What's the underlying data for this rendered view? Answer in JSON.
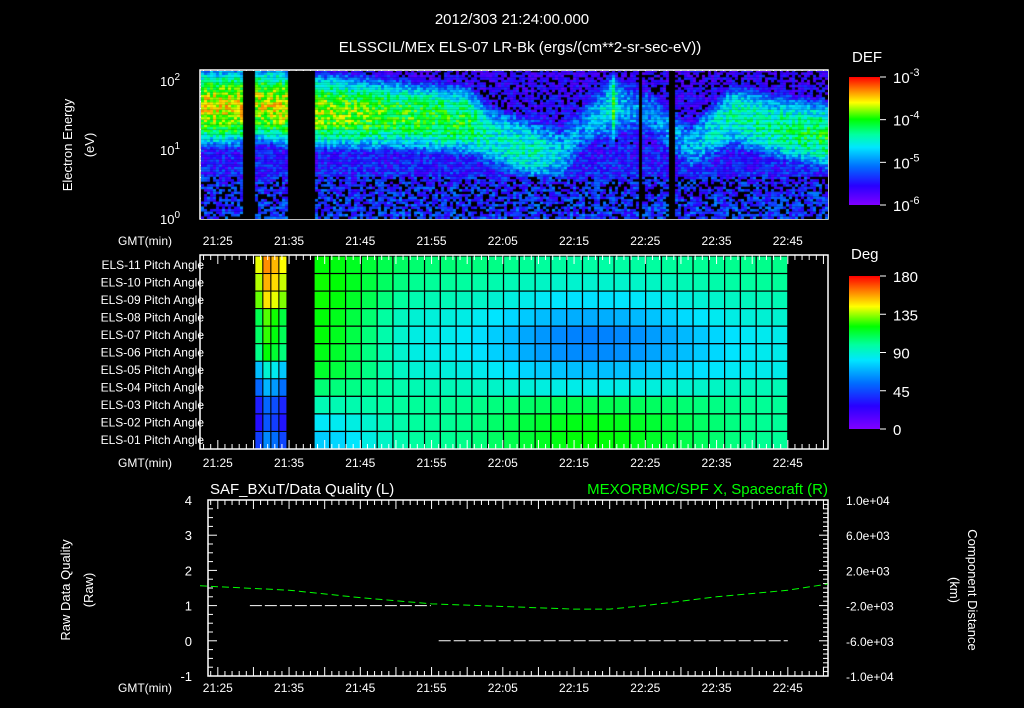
{
  "header": {
    "date_time": "2012/303 21:24:00.000",
    "title": "ELSSCIL/MEx ELS-07 LR-Bk  (ergs/(cm**2-sr-sec-eV))"
  },
  "time_axis": {
    "label": "GMT(min)",
    "ticks": [
      "21:25",
      "21:35",
      "21:45",
      "21:55",
      "22:05",
      "22:15",
      "22:25",
      "22:35",
      "22:45"
    ]
  },
  "chart_data": [
    {
      "type": "heatmap",
      "title": "ELSSCIL/MEx ELS-07 LR-Bk  (ergs/(cm**2-sr-sec-eV))",
      "ylabel": [
        "Electron Energy",
        "(eV)"
      ],
      "yscale": "log",
      "ylim": [
        1,
        150
      ],
      "yticks": [
        {
          "base": "10",
          "exp": "2",
          "value": 100
        },
        {
          "base": "10",
          "exp": "1",
          "value": 10
        },
        {
          "base": "10",
          "exp": "0",
          "value": 1
        }
      ],
      "colorbar": {
        "label": "DEF",
        "scale": "log",
        "range": [
          1e-06,
          0.001
        ],
        "ticks": [
          {
            "base": "10",
            "exp": "-3",
            "value": -3
          },
          {
            "base": "10",
            "exp": "-4",
            "value": -4
          },
          {
            "base": "10",
            "exp": "-5",
            "value": -5
          },
          {
            "base": "10",
            "exp": "-6",
            "value": -6
          }
        ]
      },
      "data_gaps_min_past_21": [
        [
          28.5,
          30.2
        ],
        [
          34.7,
          38.5
        ],
        [
          83.7,
          84.4
        ],
        [
          88.2,
          88.8
        ]
      ],
      "peak_track": {
        "columns": [
          "time_min_past_21",
          "peak_energy_eV",
          "log10_DEF"
        ],
        "rows": [
          [
            22.5,
            40,
            -3.6
          ],
          [
            28,
            40,
            -3.6
          ],
          [
            30,
            45,
            -3.7
          ],
          [
            34,
            40,
            -3.6
          ],
          [
            38.5,
            35,
            -3.75
          ],
          [
            50,
            30,
            -4.0
          ],
          [
            60,
            25,
            -4.1
          ],
          [
            63,
            15,
            -4.5
          ],
          [
            68,
            10,
            -4.4
          ],
          [
            73,
            8,
            -4.7
          ],
          [
            76,
            20,
            -5.0
          ],
          [
            79.8,
            40,
            -4.6
          ],
          [
            80.3,
            40,
            -3.9
          ],
          [
            81,
            40,
            -4.8
          ],
          [
            86,
            30,
            -5.0
          ],
          [
            91,
            10,
            -4.9
          ],
          [
            97,
            30,
            -4.4
          ],
          [
            103,
            20,
            -4.3
          ],
          [
            110.6,
            15,
            -4.1
          ]
        ]
      }
    },
    {
      "type": "heatmap",
      "colorbar": {
        "label": "Deg",
        "range": [
          0,
          180
        ],
        "ticks": [
          "180",
          "135",
          "90",
          "45",
          "0"
        ]
      },
      "profile_times_min_past_21": [
        38.5,
        55,
        77,
        105
      ],
      "early_block_min_past_21": [
        30.2,
        34.7
      ],
      "rows": [
        {
          "label": "ELS-11 Pitch Angle",
          "early": 150,
          "profile": [
            120,
            105,
            98,
            102
          ]
        },
        {
          "label": "ELS-10 Pitch Angle",
          "early": 145,
          "profile": [
            122,
            100,
            90,
            100
          ]
        },
        {
          "label": "ELS-09 Pitch Angle",
          "early": 138,
          "profile": [
            122,
            95,
            80,
            95
          ]
        },
        {
          "label": "ELS-08 Pitch Angle",
          "early": 118,
          "profile": [
            120,
            88,
            68,
            90
          ]
        },
        {
          "label": "ELS-07 Pitch Angle",
          "early": 115,
          "profile": [
            120,
            85,
            58,
            85
          ]
        },
        {
          "label": "ELS-06 Pitch Angle",
          "early": 110,
          "profile": [
            118,
            85,
            60,
            85
          ]
        },
        {
          "label": "ELS-05 Pitch Angle",
          "early": 80,
          "profile": [
            115,
            88,
            72,
            85
          ]
        },
        {
          "label": "ELS-04 Pitch Angle",
          "early": 60,
          "profile": [
            105,
            95,
            85,
            95
          ]
        },
        {
          "label": "ELS-03 Pitch Angle",
          "early": 42,
          "profile": [
            95,
            100,
            110,
            100
          ]
        },
        {
          "label": "ELS-02 Pitch Angle",
          "early": 38,
          "profile": [
            82,
            100,
            118,
            100
          ]
        },
        {
          "label": "ELS-01 Pitch Angle",
          "early": 50,
          "profile": [
            75,
            100,
            120,
            100
          ]
        }
      ]
    },
    {
      "type": "line",
      "title_left": "SAF_BXuT/Data Quality (L)",
      "title_right": "MEXORBMC/SPF X, Spacecraft (R)",
      "ylabel": [
        "Raw Data Quality",
        "(Raw)"
      ],
      "y2label": [
        "Component Distance",
        "(km)"
      ],
      "ylim": [
        -1,
        4
      ],
      "yticks": [
        "4",
        "3",
        "2",
        "1",
        "0",
        "-1"
      ],
      "y2lim": [
        -10000,
        10000
      ],
      "y2ticks": [
        "1.0e+04",
        "6.0e+03",
        "2.0e+03",
        "-2.0e+03",
        "-6.0e+03",
        "-1.0e+04"
      ],
      "series": [
        {
          "name": "Data Quality",
          "axis": "left",
          "color": "#ffffff",
          "segments": [
            [
              29.5,
              54.9,
              1
            ],
            [
              56,
              105,
              0
            ]
          ]
        },
        {
          "name": "SPF X",
          "axis": "right",
          "color": "#00ff00",
          "points": [
            [
              22.5,
              250
            ],
            [
              35,
              -250
            ],
            [
              45,
              -1100
            ],
            [
              55,
              -1800
            ],
            [
              65,
              -2100
            ],
            [
              75,
              -2400
            ],
            [
              80,
              -2400
            ],
            [
              85,
              -2000
            ],
            [
              95,
              -1000
            ],
            [
              105,
              -250
            ],
            [
              110.6,
              450
            ]
          ]
        }
      ]
    }
  ]
}
